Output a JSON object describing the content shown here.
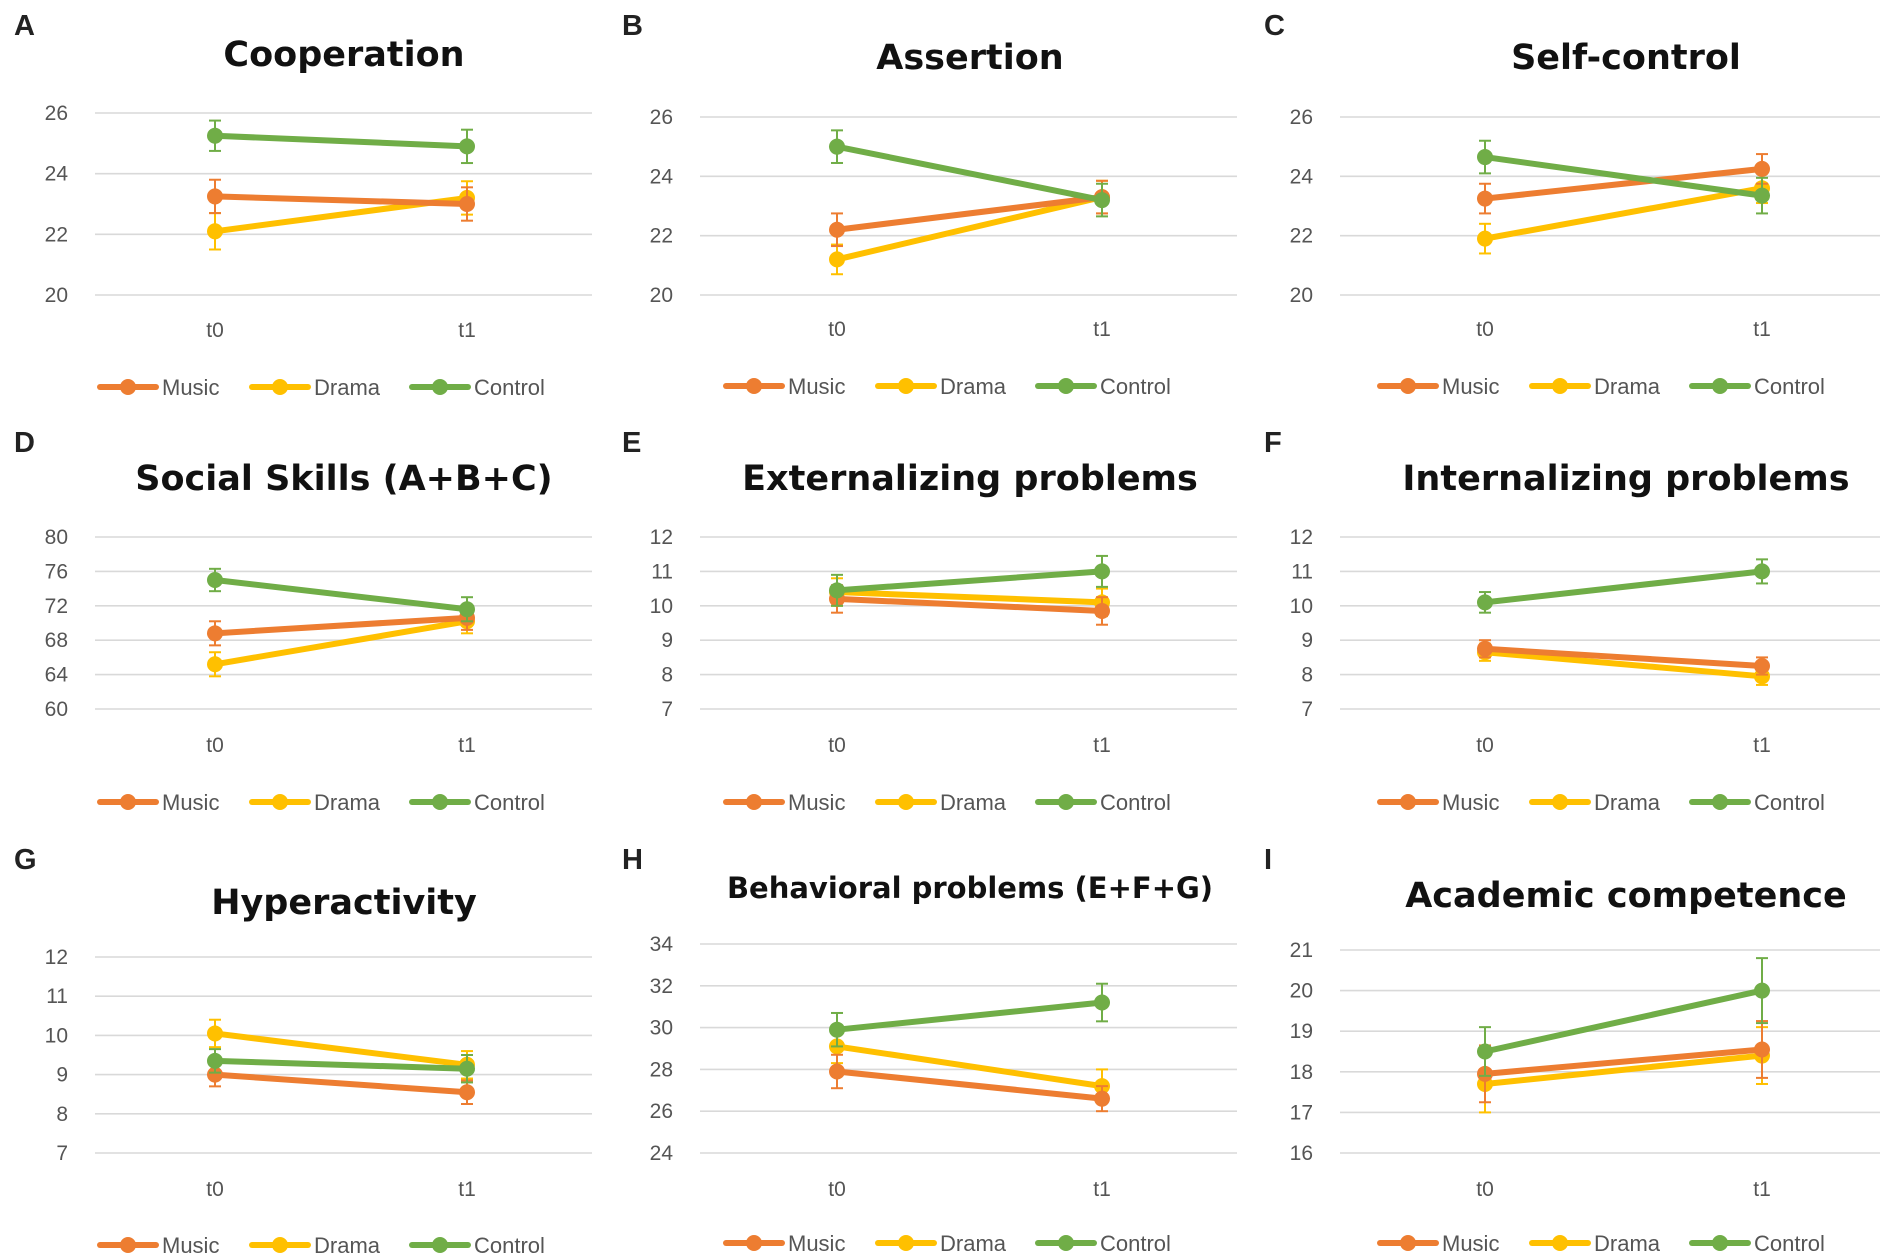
{
  "colors": {
    "Music": "#ED7D31",
    "Drama": "#FFC000",
    "Control": "#70AD47",
    "grid": "#d9d9d9",
    "text": "#555555"
  },
  "chart_data": [
    {
      "letter": "A",
      "title": "Cooperation",
      "type": "line",
      "categories": [
        "t0",
        "t1"
      ],
      "yticks": [
        20,
        22,
        24,
        26
      ],
      "ylim": [
        20,
        26
      ],
      "series": [
        {
          "name": "Music",
          "values": [
            23.25,
            23.0
          ],
          "err": [
            0.55,
            0.55
          ]
        },
        {
          "name": "Drama",
          "values": [
            22.1,
            23.2
          ],
          "err": [
            0.6,
            0.55
          ]
        },
        {
          "name": "Control",
          "values": [
            25.25,
            24.9
          ],
          "err": [
            0.5,
            0.55
          ]
        }
      ],
      "legend": [
        "Music",
        "Drama",
        "Control"
      ]
    },
    {
      "letter": "B",
      "title": "Assertion",
      "type": "line",
      "categories": [
        "t0",
        "t1"
      ],
      "yticks": [
        20,
        22,
        24,
        26
      ],
      "ylim": [
        20,
        26
      ],
      "series": [
        {
          "name": "Music",
          "values": [
            22.2,
            23.3
          ],
          "err": [
            0.55,
            0.55
          ]
        },
        {
          "name": "Drama",
          "values": [
            21.2,
            23.3
          ],
          "err": [
            0.5,
            0.55
          ]
        },
        {
          "name": "Control",
          "values": [
            25.0,
            23.2
          ],
          "err": [
            0.55,
            0.55
          ]
        }
      ],
      "legend": [
        "Music",
        "Drama",
        "Control"
      ]
    },
    {
      "letter": "C",
      "title": "Self-control",
      "type": "line",
      "categories": [
        "t0",
        "t1"
      ],
      "yticks": [
        20,
        22,
        24,
        26
      ],
      "ylim": [
        20,
        26
      ],
      "series": [
        {
          "name": "Music",
          "values": [
            23.25,
            24.25
          ],
          "err": [
            0.5,
            0.5
          ]
        },
        {
          "name": "Drama",
          "values": [
            21.9,
            23.6
          ],
          "err": [
            0.5,
            0.5
          ]
        },
        {
          "name": "Control",
          "values": [
            24.65,
            23.35
          ],
          "err": [
            0.55,
            0.6
          ]
        }
      ],
      "legend": [
        "Music",
        "Drama",
        "Control"
      ]
    },
    {
      "letter": "D",
      "title": "Social Skills (A+B+C)",
      "type": "line",
      "categories": [
        "t0",
        "t1"
      ],
      "yticks": [
        60,
        64,
        68,
        72,
        76,
        80
      ],
      "ylim": [
        60,
        80
      ],
      "series": [
        {
          "name": "Music",
          "values": [
            68.8,
            70.6
          ],
          "err": [
            1.4,
            1.4
          ]
        },
        {
          "name": "Drama",
          "values": [
            65.2,
            70.2
          ],
          "err": [
            1.4,
            1.4
          ]
        },
        {
          "name": "Control",
          "values": [
            75.0,
            71.6
          ],
          "err": [
            1.3,
            1.4
          ]
        }
      ],
      "legend": [
        "Music",
        "Drama",
        "Control"
      ]
    },
    {
      "letter": "E",
      "title": "Externalizing problems",
      "type": "line",
      "categories": [
        "t0",
        "t1"
      ],
      "yticks": [
        7,
        8,
        9,
        10,
        11,
        12
      ],
      "ylim": [
        7,
        12
      ],
      "series": [
        {
          "name": "Music",
          "values": [
            10.2,
            9.85
          ],
          "err": [
            0.4,
            0.4
          ]
        },
        {
          "name": "Drama",
          "values": [
            10.4,
            10.1
          ],
          "err": [
            0.4,
            0.4
          ]
        },
        {
          "name": "Control",
          "values": [
            10.45,
            11.0
          ],
          "err": [
            0.45,
            0.45
          ]
        }
      ],
      "legend": [
        "Music",
        "Drama",
        "Control"
      ]
    },
    {
      "letter": "F",
      "title": "Internalizing problems",
      "type": "line",
      "categories": [
        "t0",
        "t1"
      ],
      "yticks": [
        7,
        8,
        9,
        10,
        11,
        12
      ],
      "ylim": [
        7,
        12
      ],
      "series": [
        {
          "name": "Music",
          "values": [
            8.75,
            8.25
          ],
          "err": [
            0.25,
            0.25
          ]
        },
        {
          "name": "Drama",
          "values": [
            8.65,
            7.95
          ],
          "err": [
            0.25,
            0.25
          ]
        },
        {
          "name": "Control",
          "values": [
            10.1,
            11.0
          ],
          "err": [
            0.3,
            0.35
          ]
        }
      ],
      "legend": [
        "Music",
        "Drama",
        "Control"
      ]
    },
    {
      "letter": "G",
      "title": "Hyperactivity",
      "type": "line",
      "categories": [
        "t0",
        "t1"
      ],
      "yticks": [
        7,
        8,
        9,
        10,
        11,
        12
      ],
      "ylim": [
        7,
        12
      ],
      "series": [
        {
          "name": "Music",
          "values": [
            9.0,
            8.55
          ],
          "err": [
            0.3,
            0.3
          ]
        },
        {
          "name": "Drama",
          "values": [
            10.05,
            9.25
          ],
          "err": [
            0.35,
            0.35
          ]
        },
        {
          "name": "Control",
          "values": [
            9.35,
            9.15
          ],
          "err": [
            0.3,
            0.35
          ]
        }
      ],
      "legend": [
        "Music",
        "Drama",
        "Control"
      ]
    },
    {
      "letter": "H",
      "title": "Behavioral problems (E+F+G)",
      "type": "line",
      "categories": [
        "t0",
        "t1"
      ],
      "yticks": [
        24,
        26,
        28,
        30,
        32,
        34
      ],
      "ylim": [
        24,
        34
      ],
      "series": [
        {
          "name": "Music",
          "values": [
            27.9,
            26.6
          ],
          "err": [
            0.8,
            0.6
          ]
        },
        {
          "name": "Drama",
          "values": [
            29.1,
            27.2
          ],
          "err": [
            0.8,
            0.8
          ]
        },
        {
          "name": "Control",
          "values": [
            29.9,
            31.2
          ],
          "err": [
            0.8,
            0.9
          ]
        }
      ],
      "legend": [
        "Music",
        "Drama",
        "Control"
      ]
    },
    {
      "letter": "I",
      "title": "Academic competence",
      "type": "line",
      "categories": [
        "t0",
        "t1"
      ],
      "yticks": [
        16,
        17,
        18,
        19,
        20,
        21
      ],
      "ylim": [
        16,
        21
      ],
      "series": [
        {
          "name": "Music",
          "values": [
            17.95,
            18.55
          ],
          "err": [
            0.7,
            0.7
          ]
        },
        {
          "name": "Drama",
          "values": [
            17.7,
            18.4
          ],
          "err": [
            0.7,
            0.7
          ]
        },
        {
          "name": "Control",
          "values": [
            18.5,
            20.0
          ],
          "err": [
            0.6,
            0.8
          ]
        }
      ],
      "legend": [
        "Music",
        "Drama",
        "Control"
      ]
    }
  ]
}
